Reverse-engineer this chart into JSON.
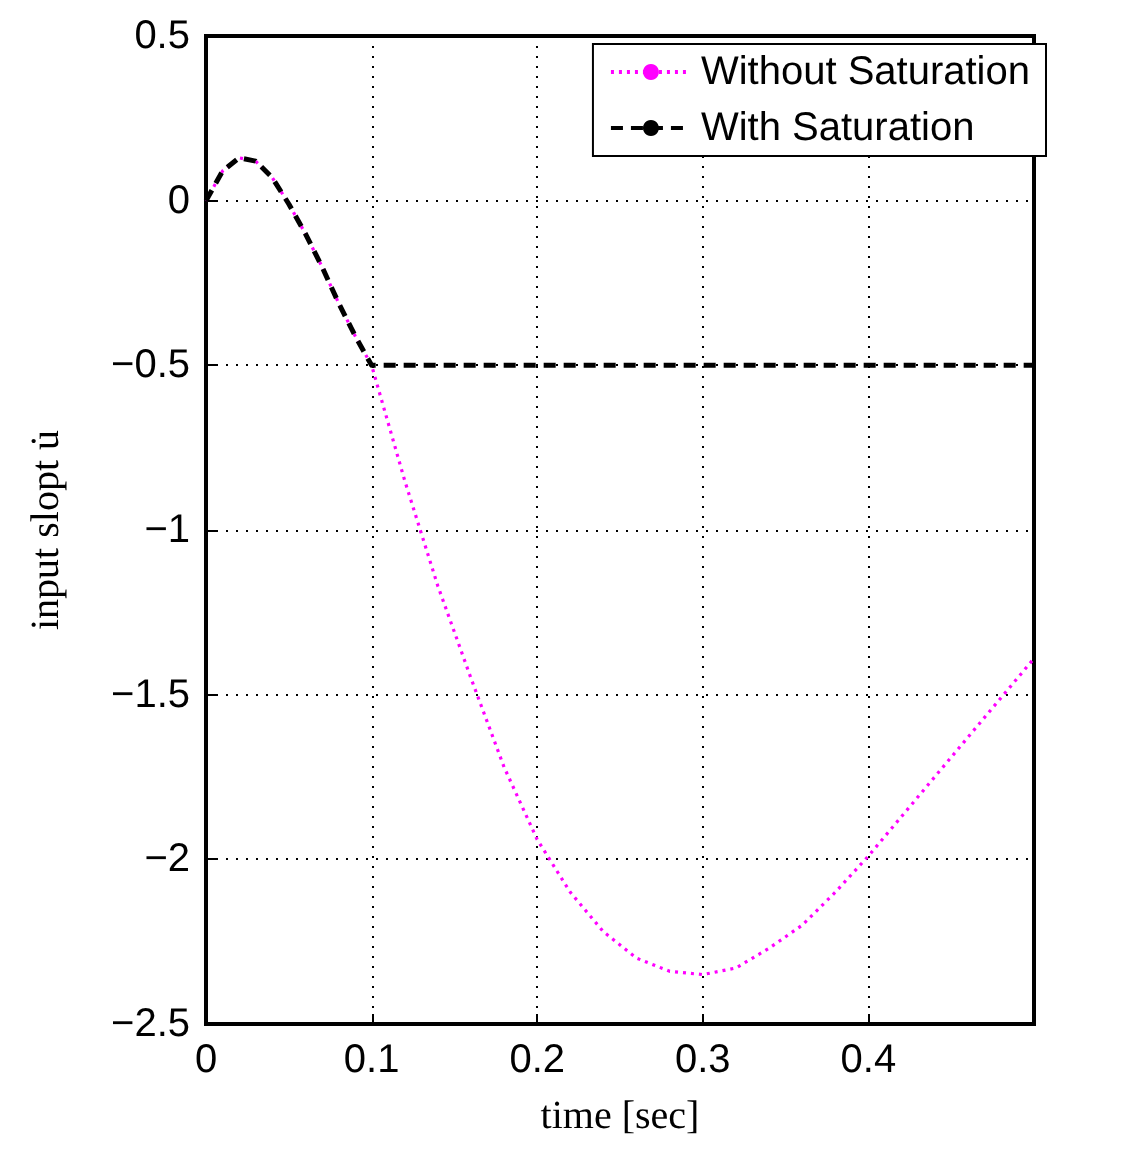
{
  "chart_data": {
    "type": "line",
    "xlabel": "time [sec]",
    "ylabel": "input slopt u̇",
    "xlim": [
      0,
      0.5
    ],
    "xticks": [
      0,
      0.1,
      0.2,
      0.3,
      0.4
    ],
    "ylim": [
      -2.5,
      0.5
    ],
    "yticks": [
      -2.5,
      -2,
      -1.5,
      -1,
      -0.5,
      0,
      0.5
    ],
    "grid": true,
    "legend": "top right",
    "marker": "none",
    "series": [
      {
        "name": "Without Saturation",
        "color": "#ff00ff",
        "line_style": "dotted",
        "x": [
          0,
          0.01,
          0.02,
          0.03,
          0.04,
          0.05,
          0.06,
          0.07,
          0.08,
          0.09,
          0.1,
          0.12,
          0.14,
          0.16,
          0.18,
          0.2,
          0.22,
          0.24,
          0.26,
          0.28,
          0.3,
          0.32,
          0.34,
          0.36,
          0.38,
          0.4,
          0.42,
          0.44,
          0.46,
          0.48,
          0.5
        ],
        "values": [
          0,
          0.09,
          0.13,
          0.12,
          0.07,
          -0.01,
          -0.1,
          -0.2,
          -0.31,
          -0.41,
          -0.5,
          -0.85,
          -1.17,
          -1.45,
          -1.72,
          -1.94,
          -2.1,
          -2.22,
          -2.3,
          -2.34,
          -2.35,
          -2.33,
          -2.27,
          -2.2,
          -2.1,
          -1.99,
          -1.87,
          -1.75,
          -1.63,
          -1.51,
          -1.39
        ]
      },
      {
        "name": "With Saturation",
        "color": "#000000",
        "line_style": "dashed",
        "x": [
          0,
          0.01,
          0.02,
          0.03,
          0.04,
          0.05,
          0.06,
          0.07,
          0.08,
          0.09,
          0.1,
          0.5
        ],
        "values": [
          0,
          0.09,
          0.13,
          0.12,
          0.07,
          -0.01,
          -0.1,
          -0.2,
          -0.31,
          -0.41,
          -0.5,
          -0.5
        ]
      }
    ]
  }
}
